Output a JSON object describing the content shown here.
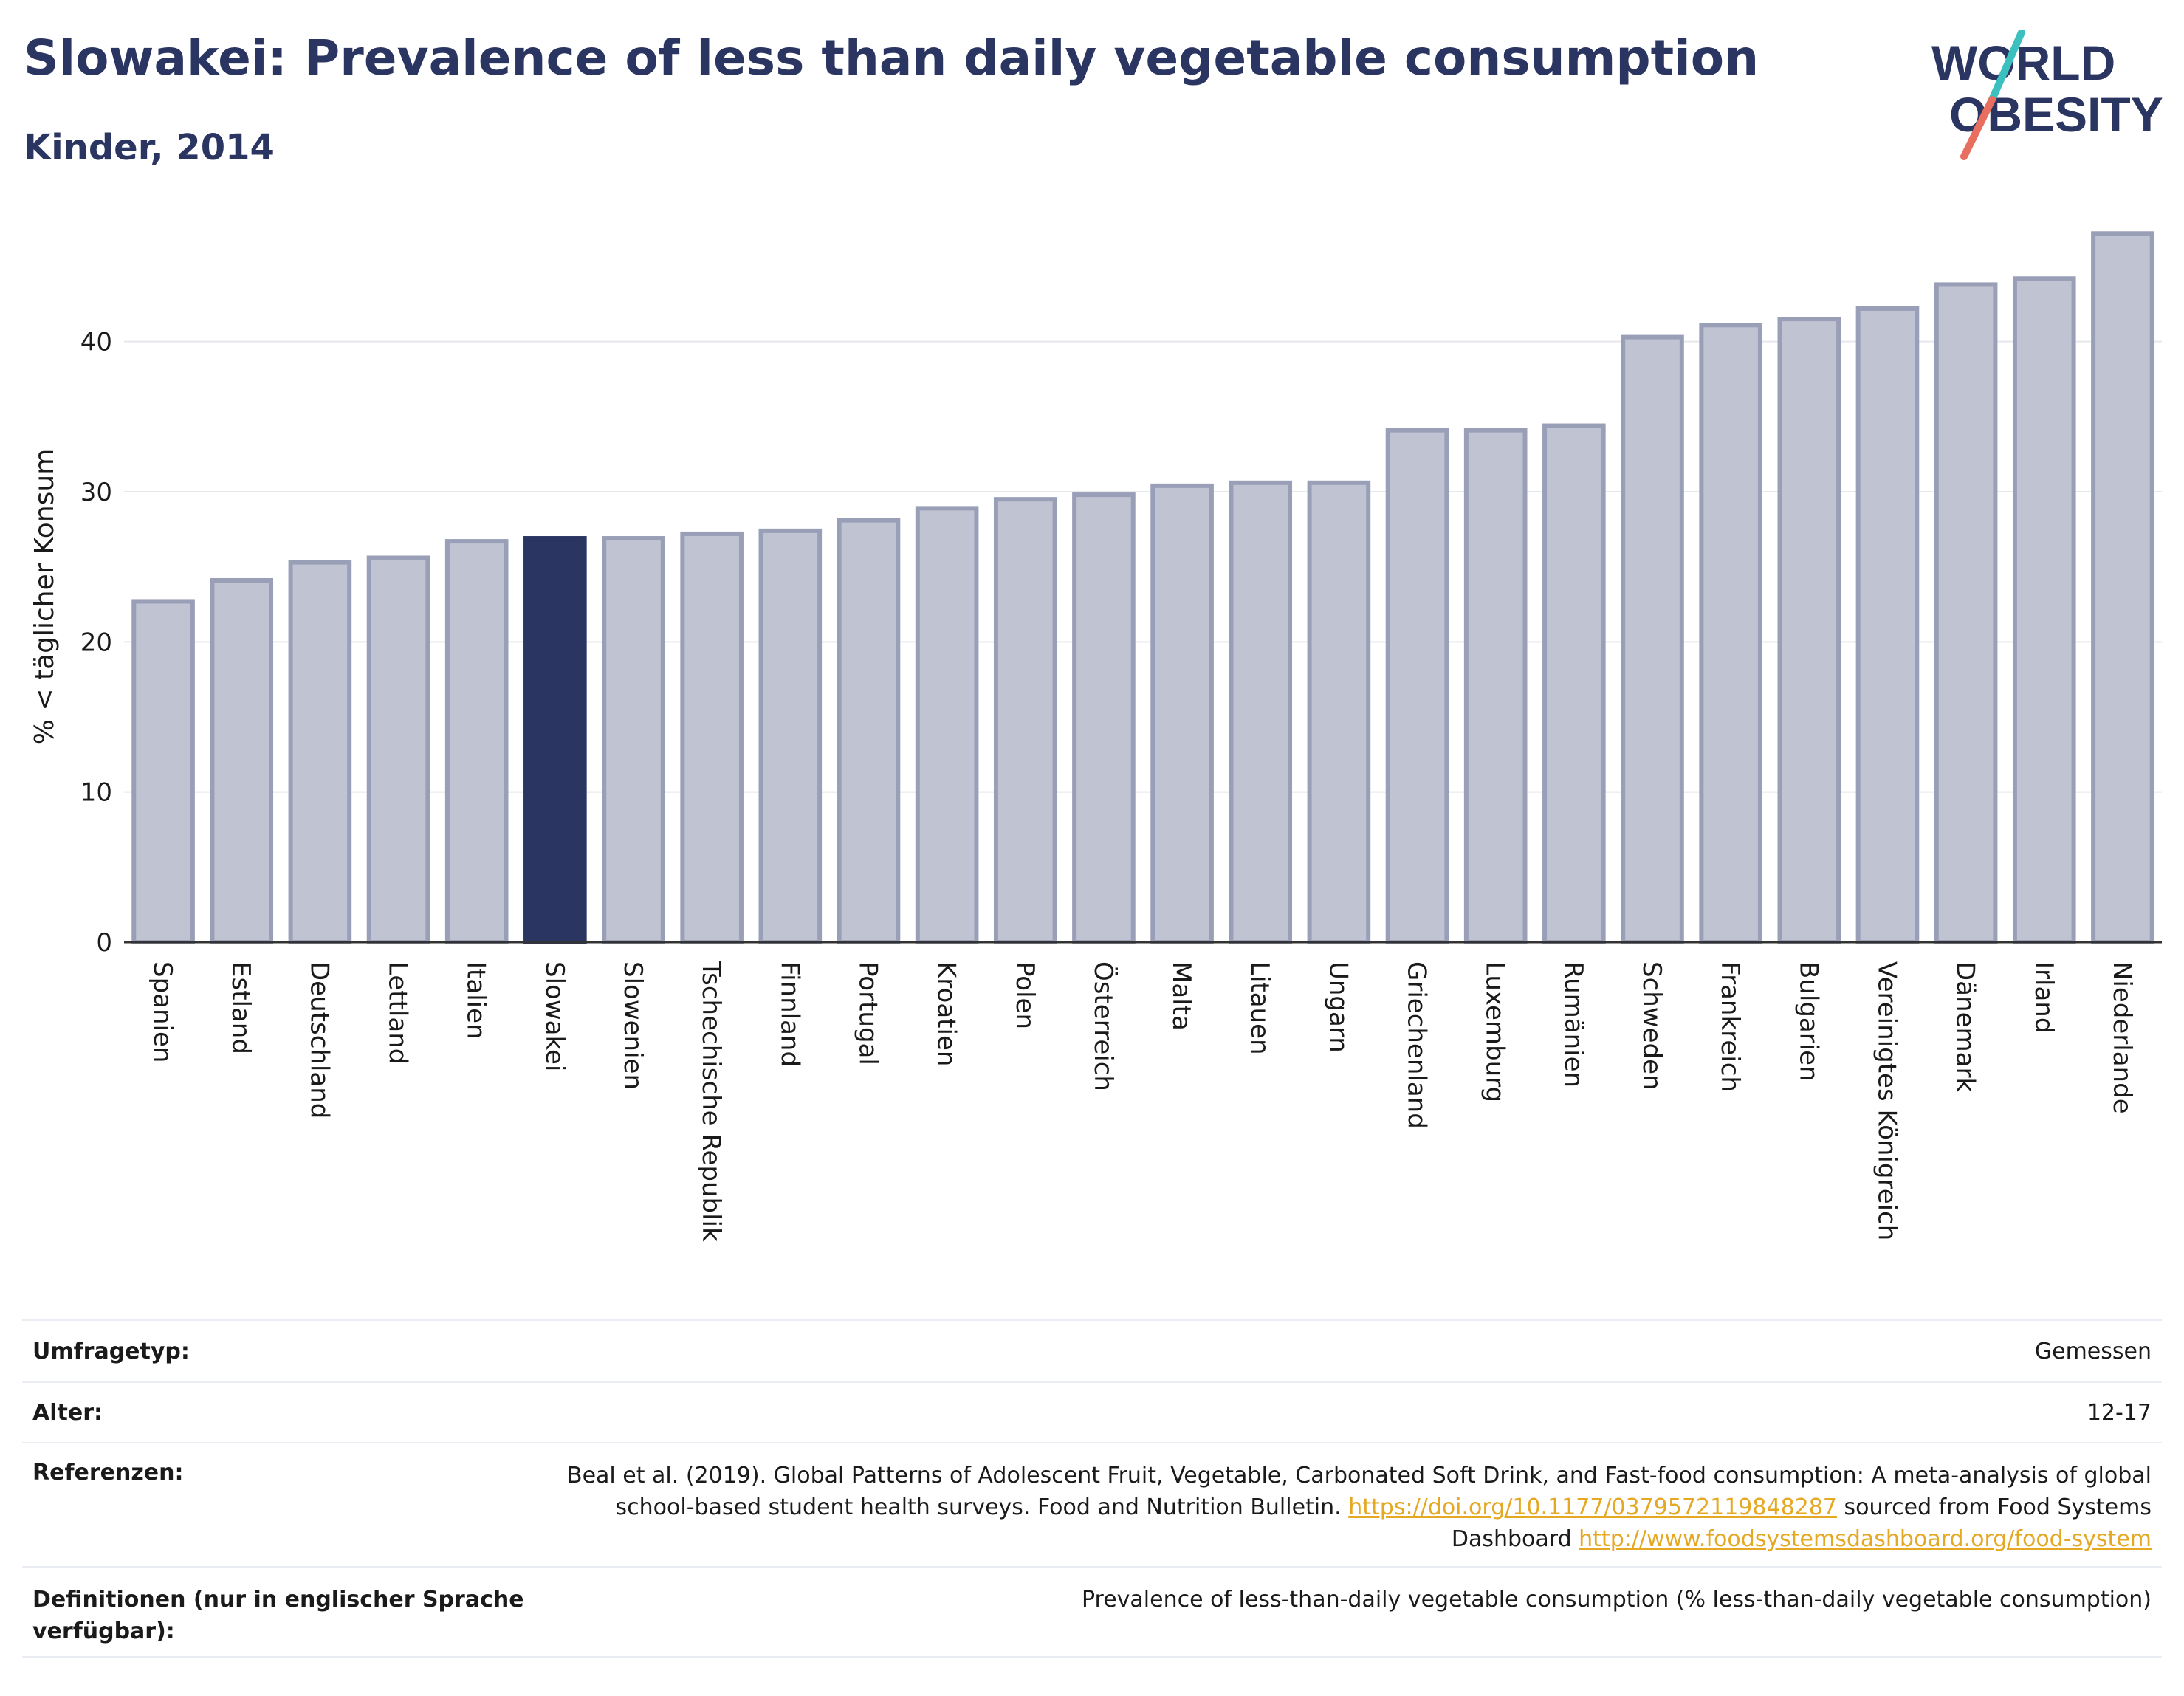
{
  "header": {
    "title": "Slowakei: Prevalence of less than daily vegetable consumption",
    "subtitle": "Kinder, 2014",
    "logo_line1": "WORLD",
    "logo_line2": "OBESITY"
  },
  "colors": {
    "primary": "#2b3561",
    "bar_default": "#c0c3d1",
    "bar_border": "#9a9fb8",
    "highlight": "#2b3561",
    "link": "#e5a823",
    "logo_teal": "#3bbfbf",
    "logo_coral": "#e86f5f"
  },
  "chart_data": {
    "type": "bar",
    "ylabel": "% < täglicher Konsum",
    "ylim": [
      0,
      48
    ],
    "yticks": [
      0,
      10,
      20,
      30,
      40
    ],
    "grid": true,
    "highlight": "Slowakei",
    "categories": [
      "Spanien",
      "Estland",
      "Deutschland",
      "Lettland",
      "Italien",
      "Slowakei",
      "Slowenien",
      "Tschechische Republik",
      "Finnland",
      "Portugal",
      "Kroatien",
      "Polen",
      "Österreich",
      "Malta",
      "Litauen",
      "Ungarn",
      "Griechenland",
      "Luxemburg",
      "Rumänien",
      "Schweden",
      "Frankreich",
      "Bulgarien",
      "Vereinigtes Königreich",
      "Dänemark",
      "Irland",
      "Niederlande"
    ],
    "values": [
      22.7,
      24.1,
      25.3,
      25.6,
      26.7,
      26.9,
      26.9,
      27.2,
      27.4,
      28.1,
      28.9,
      29.5,
      29.8,
      30.4,
      30.6,
      30.6,
      34.1,
      34.1,
      34.4,
      40.3,
      41.1,
      41.5,
      42.2,
      43.8,
      44.2,
      47.2
    ]
  },
  "table": {
    "rows": [
      {
        "label": "Umfragetyp:",
        "value": "Gemessen"
      },
      {
        "label": "Alter:",
        "value": "12-17"
      },
      {
        "label": "Referenzen:",
        "value": "Beal et al. (2019). Global Patterns of Adolescent Fruit, Vegetable, Carbonated Soft Drink, and Fast-food consumption: A meta-analysis of global school-based student health surveys. Food and Nutrition Bulletin.",
        "link1": "https://doi.org/10.1177/0379572119848287",
        "mid": " sourced from Food Systems Dashboard ",
        "link2": "http://www.foodsystemsdashboard.org/food-system"
      },
      {
        "label": "Definitionen (nur in englischer Sprache verfügbar):",
        "value": "Prevalence of less-than-daily vegetable consumption (% less-than-daily vegetable consumption)"
      }
    ]
  }
}
